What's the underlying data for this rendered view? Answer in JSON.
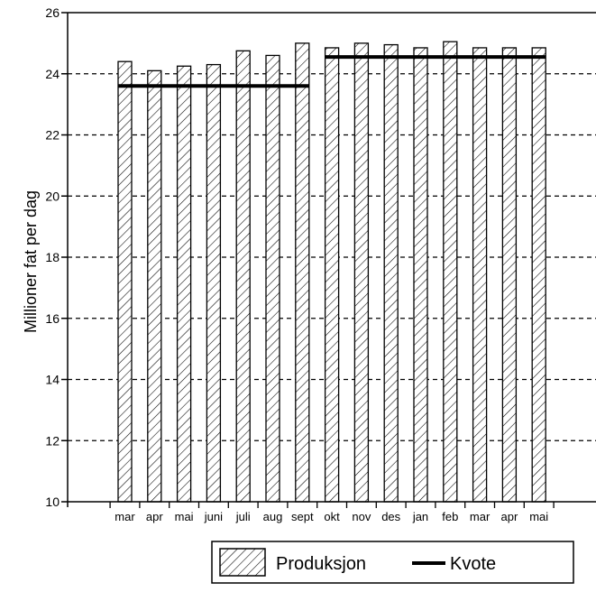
{
  "chart_data": {
    "type": "bar",
    "ylabel": "Millioner fat per dag",
    "xlabel": "",
    "title": "",
    "ylim": [
      10,
      26
    ],
    "yticks": [
      10,
      12,
      14,
      16,
      18,
      20,
      22,
      24,
      26
    ],
    "grid": "horizontal dashed",
    "legend_position": "bottom-right",
    "categories": [
      "mar",
      "apr",
      "mai",
      "juni",
      "juli",
      "aug",
      "sept",
      "okt",
      "nov",
      "des",
      "jan",
      "feb",
      "mar",
      "apr",
      "mai"
    ],
    "series": [
      {
        "name": "Produksjon",
        "kind": "bar",
        "pattern": "diagonal-hatch",
        "values": [
          24.4,
          24.1,
          24.25,
          24.3,
          24.75,
          24.6,
          25.0,
          24.85,
          25.0,
          24.95,
          24.85,
          25.05,
          24.85,
          24.85,
          24.85
        ]
      },
      {
        "name": "Kvote",
        "kind": "line",
        "color": "#000000",
        "segments": [
          {
            "from": "mar",
            "to": "sept",
            "value": 23.6
          },
          {
            "from": "okt",
            "to": "mai",
            "value": 24.55
          }
        ]
      }
    ]
  },
  "legend": {
    "produksjon_label": "Produksjon",
    "kvote_label": "Kvote"
  }
}
